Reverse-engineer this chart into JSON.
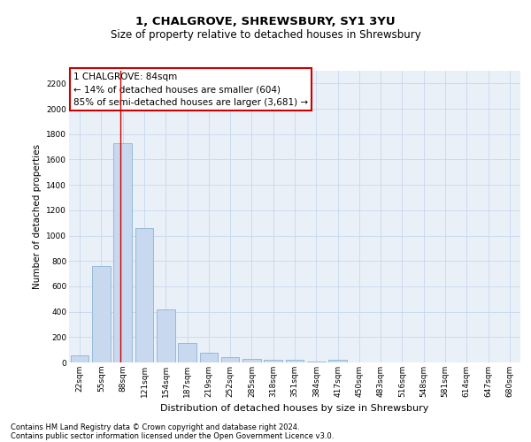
{
  "title": "1, CHALGROVE, SHREWSBURY, SY1 3YU",
  "subtitle": "Size of property relative to detached houses in Shrewsbury",
  "xlabel": "Distribution of detached houses by size in Shrewsbury",
  "ylabel": "Number of detached properties",
  "bar_color": "#c8d8ee",
  "bar_edge_color": "#7aaad0",
  "grid_color": "#c8d8ee",
  "annotation_box_color": "#cc0000",
  "vline_color": "#cc0000",
  "background_color": "#ffffff",
  "plot_bg_color": "#eaf0f8",
  "categories": [
    "22sqm",
    "55sqm",
    "88sqm",
    "121sqm",
    "154sqm",
    "187sqm",
    "219sqm",
    "252sqm",
    "285sqm",
    "318sqm",
    "351sqm",
    "384sqm",
    "417sqm",
    "450sqm",
    "483sqm",
    "516sqm",
    "548sqm",
    "581sqm",
    "614sqm",
    "647sqm",
    "680sqm"
  ],
  "values": [
    55,
    760,
    1730,
    1060,
    420,
    155,
    80,
    40,
    30,
    18,
    18,
    10,
    20,
    0,
    0,
    0,
    0,
    0,
    0,
    0,
    0
  ],
  "property_label": "1 CHALGROVE: 84sqm",
  "annotation_line1": "← 14% of detached houses are smaller (604)",
  "annotation_line2": "85% of semi-detached houses are larger (3,681) →",
  "vline_x": 1.88,
  "ylim": [
    0,
    2300
  ],
  "yticks": [
    0,
    200,
    400,
    600,
    800,
    1000,
    1200,
    1400,
    1600,
    1800,
    2000,
    2200
  ],
  "footer_line1": "Contains HM Land Registry data © Crown copyright and database right 2024.",
  "footer_line2": "Contains public sector information licensed under the Open Government Licence v3.0.",
  "title_fontsize": 9.5,
  "subtitle_fontsize": 8.5,
  "xlabel_fontsize": 8,
  "ylabel_fontsize": 7.5,
  "tick_fontsize": 6.5,
  "annotation_fontsize": 7.5,
  "footer_fontsize": 6.0
}
